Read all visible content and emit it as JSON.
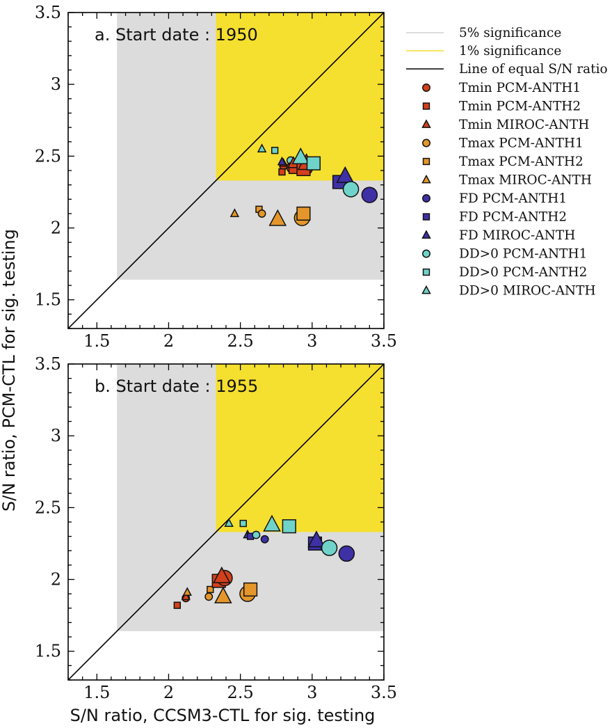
{
  "figure": {
    "xlabel": "S/N ratio, CCSM3-CTL for sig. testing",
    "ylabel": "S/N ratio, PCM-CTL for sig. testing"
  },
  "colors": {
    "sig5": "#dcdcdc",
    "sig1": "#f5df2f",
    "Tmin": "#d2401c",
    "Tmax": "#e5962b",
    "FD": "#3e31a6",
    "DD>0": "#6fd3c9"
  },
  "legend": {
    "lines": [
      {
        "key": "sig5",
        "label": "5% significance",
        "color": "#d0d0d0"
      },
      {
        "key": "sig1",
        "label": "1% significance",
        "color": "#f5df2f"
      },
      {
        "key": "equal",
        "label": "Line of equal S/N ratio",
        "color": "#000000"
      }
    ],
    "markers": [
      {
        "label": "Tmin PCM-ANTH1",
        "variable": "Tmin",
        "shape": "circle"
      },
      {
        "label": "Tmin PCM-ANTH2",
        "variable": "Tmin",
        "shape": "square"
      },
      {
        "label": "Tmin MIROC-ANTH",
        "variable": "Tmin",
        "shape": "triangle"
      },
      {
        "label": "Tmax PCM-ANTH1",
        "variable": "Tmax",
        "shape": "circle"
      },
      {
        "label": "Tmax PCM-ANTH2",
        "variable": "Tmax",
        "shape": "square"
      },
      {
        "label": "Tmax MIROC-ANTH",
        "variable": "Tmax",
        "shape": "triangle"
      },
      {
        "label": "FD PCM-ANTH1",
        "variable": "FD",
        "shape": "circle"
      },
      {
        "label": "FD PCM-ANTH2",
        "variable": "FD",
        "shape": "square"
      },
      {
        "label": "FD MIROC-ANTH",
        "variable": "FD",
        "shape": "triangle"
      },
      {
        "label": "DD>0 PCM-ANTH1",
        "variable": "DD>0",
        "shape": "circle"
      },
      {
        "label": "DD>0 PCM-ANTH2",
        "variable": "DD>0",
        "shape": "square"
      },
      {
        "label": "DD>0 MIROC-ANTH",
        "variable": "DD>0",
        "shape": "triangle"
      }
    ]
  },
  "chart_data": [
    {
      "type": "scatter",
      "title": "a. Start date : 1950",
      "xlim": [
        1.3,
        3.5
      ],
      "ylim": [
        1.3,
        3.5
      ],
      "xticks": [
        "1.5",
        "2",
        "2.5",
        "3",
        "3.5"
      ],
      "yticks": [
        "1.5",
        "2",
        "2.5",
        "3",
        "3.5"
      ],
      "sig5_threshold": 1.64,
      "sig1_threshold": 2.33,
      "equal_line": true,
      "points": [
        {
          "variable": "Tmin",
          "shape": "circle",
          "x": 2.8,
          "y": 2.43,
          "size": "small"
        },
        {
          "variable": "Tmin",
          "shape": "square",
          "x": 2.79,
          "y": 2.39,
          "size": "small"
        },
        {
          "variable": "Tmin",
          "shape": "triangle",
          "x": 2.8,
          "y": 2.45,
          "size": "small"
        },
        {
          "variable": "Tmin",
          "shape": "circle",
          "x": 2.86,
          "y": 2.42,
          "size": "medium"
        },
        {
          "variable": "Tmin",
          "shape": "square",
          "x": 2.87,
          "y": 2.41,
          "size": "medium"
        },
        {
          "variable": "Tmin",
          "shape": "triangle",
          "x": 2.87,
          "y": 2.45,
          "size": "medium"
        },
        {
          "variable": "Tmin",
          "shape": "circle",
          "x": 2.95,
          "y": 2.42,
          "size": "large"
        },
        {
          "variable": "Tmin",
          "shape": "square",
          "x": 2.94,
          "y": 2.41,
          "size": "large"
        },
        {
          "variable": "Tmin",
          "shape": "triangle",
          "x": 2.96,
          "y": 2.45,
          "size": "large"
        },
        {
          "variable": "Tmax",
          "shape": "triangle",
          "x": 2.46,
          "y": 2.1,
          "size": "small"
        },
        {
          "variable": "Tmax",
          "shape": "square",
          "x": 2.63,
          "y": 2.13,
          "size": "small"
        },
        {
          "variable": "Tmax",
          "shape": "circle",
          "x": 2.65,
          "y": 2.1,
          "size": "small"
        },
        {
          "variable": "Tmax",
          "shape": "triangle",
          "x": 2.76,
          "y": 2.06,
          "size": "large"
        },
        {
          "variable": "Tmax",
          "shape": "circle",
          "x": 2.93,
          "y": 2.07,
          "size": "large"
        },
        {
          "variable": "Tmax",
          "shape": "square",
          "x": 2.94,
          "y": 2.1,
          "size": "large"
        },
        {
          "variable": "FD",
          "shape": "triangle",
          "x": 2.79,
          "y": 2.46,
          "size": "small"
        },
        {
          "variable": "FD",
          "shape": "circle",
          "x": 2.91,
          "y": 2.41,
          "size": "small"
        },
        {
          "variable": "FD",
          "shape": "square",
          "x": 3.19,
          "y": 2.32,
          "size": "large"
        },
        {
          "variable": "FD",
          "shape": "triangle",
          "x": 3.23,
          "y": 2.36,
          "size": "large"
        },
        {
          "variable": "FD",
          "shape": "circle",
          "x": 3.4,
          "y": 2.23,
          "size": "large"
        },
        {
          "variable": "DD>0",
          "shape": "triangle",
          "x": 2.65,
          "y": 2.55,
          "size": "small"
        },
        {
          "variable": "DD>0",
          "shape": "square",
          "x": 2.74,
          "y": 2.54,
          "size": "small"
        },
        {
          "variable": "DD>0",
          "shape": "circle",
          "x": 2.85,
          "y": 2.47,
          "size": "small"
        },
        {
          "variable": "DD>0",
          "shape": "triangle",
          "x": 2.92,
          "y": 2.49,
          "size": "large"
        },
        {
          "variable": "DD>0",
          "shape": "square",
          "x": 3.01,
          "y": 2.45,
          "size": "large"
        },
        {
          "variable": "DD>0",
          "shape": "circle",
          "x": 3.27,
          "y": 2.27,
          "size": "large"
        }
      ]
    },
    {
      "type": "scatter",
      "title": "b. Start date : 1955",
      "xlim": [
        1.3,
        3.5
      ],
      "ylim": [
        1.3,
        3.5
      ],
      "xticks": [
        "1.5",
        "2",
        "2.5",
        "3",
        "3.5"
      ],
      "yticks": [
        "1.5",
        "2",
        "2.5",
        "3",
        "3.5"
      ],
      "sig5_threshold": 1.64,
      "sig1_threshold": 2.33,
      "equal_line": true,
      "points": [
        {
          "variable": "Tmin",
          "shape": "square",
          "x": 2.06,
          "y": 1.82,
          "size": "small"
        },
        {
          "variable": "Tmin",
          "shape": "circle",
          "x": 2.12,
          "y": 1.87,
          "size": "small"
        },
        {
          "variable": "Tmin",
          "shape": "triangle",
          "x": 2.12,
          "y": 1.88,
          "size": "small"
        },
        {
          "variable": "Tmin",
          "shape": "square",
          "x": 2.35,
          "y": 1.99,
          "size": "large"
        },
        {
          "variable": "Tmin",
          "shape": "circle",
          "x": 2.39,
          "y": 2.01,
          "size": "large"
        },
        {
          "variable": "Tmin",
          "shape": "triangle",
          "x": 2.37,
          "y": 2.02,
          "size": "large"
        },
        {
          "variable": "Tmax",
          "shape": "triangle",
          "x": 2.13,
          "y": 1.91,
          "size": "small"
        },
        {
          "variable": "Tmax",
          "shape": "square",
          "x": 2.29,
          "y": 1.93,
          "size": "small"
        },
        {
          "variable": "Tmax",
          "shape": "circle",
          "x": 2.28,
          "y": 1.88,
          "size": "small"
        },
        {
          "variable": "Tmax",
          "shape": "triangle",
          "x": 2.38,
          "y": 1.88,
          "size": "large"
        },
        {
          "variable": "Tmax",
          "shape": "circle",
          "x": 2.55,
          "y": 1.9,
          "size": "large"
        },
        {
          "variable": "Tmax",
          "shape": "square",
          "x": 2.57,
          "y": 1.93,
          "size": "large"
        },
        {
          "variable": "FD",
          "shape": "triangle",
          "x": 2.55,
          "y": 2.31,
          "size": "small"
        },
        {
          "variable": "FD",
          "shape": "square",
          "x": 2.57,
          "y": 2.3,
          "size": "small"
        },
        {
          "variable": "FD",
          "shape": "circle",
          "x": 2.67,
          "y": 2.28,
          "size": "small"
        },
        {
          "variable": "FD",
          "shape": "square",
          "x": 3.02,
          "y": 2.25,
          "size": "large"
        },
        {
          "variable": "FD",
          "shape": "triangle",
          "x": 3.03,
          "y": 2.27,
          "size": "large"
        },
        {
          "variable": "FD",
          "shape": "circle",
          "x": 3.24,
          "y": 2.18,
          "size": "large"
        },
        {
          "variable": "DD>0",
          "shape": "triangle",
          "x": 2.42,
          "y": 2.39,
          "size": "small"
        },
        {
          "variable": "DD>0",
          "shape": "square",
          "x": 2.52,
          "y": 2.39,
          "size": "small"
        },
        {
          "variable": "DD>0",
          "shape": "circle",
          "x": 2.61,
          "y": 2.31,
          "size": "small"
        },
        {
          "variable": "DD>0",
          "shape": "triangle",
          "x": 2.72,
          "y": 2.38,
          "size": "large"
        },
        {
          "variable": "DD>0",
          "shape": "square",
          "x": 2.84,
          "y": 2.37,
          "size": "large"
        },
        {
          "variable": "DD>0",
          "shape": "circle",
          "x": 3.12,
          "y": 2.22,
          "size": "large"
        }
      ]
    }
  ]
}
